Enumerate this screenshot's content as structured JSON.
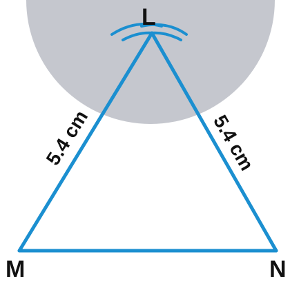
{
  "vertices": {
    "top": "L",
    "bottom_left": "M",
    "bottom_right": "N"
  },
  "sides": {
    "left": "5.4 cm",
    "right": "5.4 cm"
  },
  "colors": {
    "triangle": "#1b8fd0",
    "arc": "#1b8fd0",
    "shade": "#c5c7ce",
    "text": "#111111"
  }
}
